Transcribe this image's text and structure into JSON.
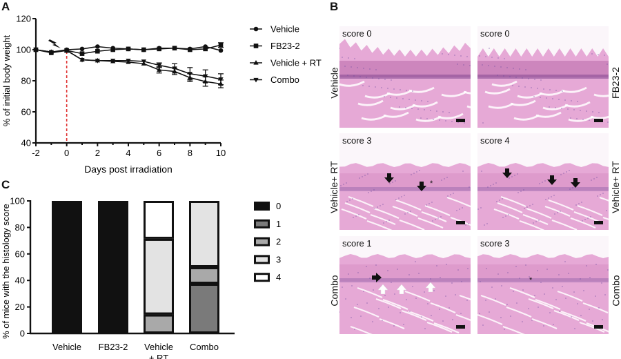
{
  "panels": {
    "A": {
      "label": "A"
    },
    "B": {
      "label": "B"
    },
    "C": {
      "label": "C"
    }
  },
  "icons": {
    "irradiation": "lightning-bolt-icon"
  },
  "chart_data": [
    {
      "type": "line",
      "panel": "A",
      "title": "",
      "xlabel": "Days post irradiation",
      "ylabel": "% of initial body weight",
      "x": [
        -2,
        -1,
        0,
        1,
        2,
        3,
        4,
        5,
        6,
        7,
        8,
        9,
        10
      ],
      "xticks": [
        -2,
        0,
        2,
        4,
        6,
        8,
        10
      ],
      "yticks": [
        40,
        60,
        80,
        100,
        120
      ],
      "xlim": [
        -2,
        10
      ],
      "ylim": [
        40,
        120
      ],
      "annotations": [
        {
          "type": "vline",
          "x": 0,
          "color": "#e03030",
          "style": "dashed"
        },
        {
          "type": "icon",
          "name": "lightning-bolt",
          "x": -0.6,
          "y": 108
        }
      ],
      "legend_position": "right",
      "series": [
        {
          "name": "Vehicle",
          "marker": "circle",
          "values": [
            100,
            98.5,
            100,
            100.5,
            102,
            101,
            100.5,
            100,
            101,
            101,
            100.5,
            102,
            99.5
          ],
          "errors": [
            0.5,
            0.8,
            0.5,
            0.8,
            0.8,
            0.8,
            0.6,
            0.6,
            0.8,
            0.8,
            0.8,
            1,
            1
          ]
        },
        {
          "name": "FB23-2",
          "marker": "square",
          "values": [
            100,
            98,
            99.5,
            97.5,
            99,
            100,
            100.5,
            100,
            100.5,
            101,
            100,
            100.5,
            103
          ],
          "errors": [
            0.5,
            0.8,
            0.5,
            0.8,
            0.8,
            0.8,
            0.6,
            0.6,
            0.8,
            0.8,
            0.8,
            1,
            1.5
          ]
        },
        {
          "name": "Vehicle + RT",
          "marker": "triangle-up",
          "values": [
            100,
            98.5,
            99.5,
            93.5,
            93,
            92.5,
            92,
            91,
            87,
            86,
            82,
            79.5,
            78
          ],
          "errors": [
            0.5,
            0.8,
            0.5,
            0.8,
            0.8,
            1,
            1,
            1,
            2,
            2,
            2.5,
            3,
            2.5
          ]
        },
        {
          "name": "Combo",
          "marker": "triangle-down",
          "values": [
            100,
            98.5,
            99.5,
            93.5,
            93,
            93,
            93,
            92.5,
            90,
            88,
            84.5,
            83,
            81
          ],
          "errors": [
            0.5,
            0.8,
            0.5,
            0.8,
            0.8,
            1,
            1,
            1,
            1.5,
            3,
            4,
            4,
            3.5
          ]
        }
      ]
    },
    {
      "type": "bar",
      "stacked": true,
      "panel": "C",
      "title": "",
      "xlabel": "",
      "ylabel": "% of mice with the histology score",
      "categories": [
        "Vehicle",
        "FB23-2",
        "Vehicle\n+ RT",
        "Combo"
      ],
      "yticks": [
        0,
        20,
        40,
        60,
        80,
        100
      ],
      "ylim": [
        0,
        100
      ],
      "legend_position": "right",
      "legend": [
        {
          "label": "0",
          "color": "#111111"
        },
        {
          "label": "1",
          "color": "#7a7a7a"
        },
        {
          "label": "2",
          "color": "#a9a9a9"
        },
        {
          "label": "3",
          "color": "#e3e3e3"
        },
        {
          "label": "4",
          "color": "#ffffff"
        }
      ],
      "series": [
        {
          "name": "0",
          "values": [
            100,
            100,
            0,
            0
          ]
        },
        {
          "name": "1",
          "values": [
            0,
            0,
            0,
            37.5
          ]
        },
        {
          "name": "2",
          "values": [
            0,
            0,
            14.3,
            12.5
          ]
        },
        {
          "name": "3",
          "values": [
            0,
            0,
            57.1,
            50
          ]
        },
        {
          "name": "4",
          "values": [
            0,
            0,
            28.6,
            0
          ]
        }
      ]
    }
  ],
  "histology": {
    "rows": [
      {
        "left_label": "Vehicle",
        "right_label": "FB23-2",
        "left_score": "score 0",
        "right_score": "score 0"
      },
      {
        "left_label": "Vehicle+ RT",
        "right_label": "Vehicle+ RT",
        "left_score": "score 3",
        "right_score": "score 4"
      },
      {
        "left_label": "Combo",
        "right_label": "Combo",
        "left_score": "score 1",
        "right_score": "score 3"
      }
    ]
  }
}
